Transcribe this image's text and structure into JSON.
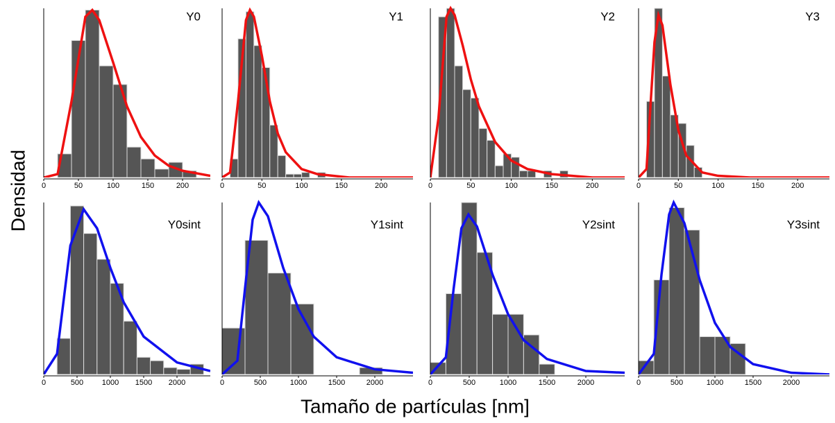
{
  "xlabel": "Tamaño de partículas [nm]",
  "ylabel": "Densidad",
  "chart_data": [
    {
      "type": "histogram",
      "title": "Y0",
      "bar_color": "#555555",
      "fit_color": "#ee1111",
      "bins": [
        20,
        40,
        60,
        80,
        100,
        120,
        140,
        160,
        180,
        200,
        220
      ],
      "values": [
        0.14,
        0.81,
        0.99,
        0.66,
        0.55,
        0.18,
        0.11,
        0.05,
        0.09,
        0.04
      ],
      "fit_x": [
        0,
        20,
        40,
        60,
        70,
        80,
        100,
        120,
        140,
        160,
        180,
        200,
        240
      ],
      "fit_values": [
        0,
        0.02,
        0.45,
        0.95,
        0.99,
        0.93,
        0.68,
        0.42,
        0.24,
        0.13,
        0.07,
        0.04,
        0.01
      ],
      "xlim": [
        0,
        240
      ],
      "ylim": [
        0,
        1
      ],
      "xticks": [
        0,
        50,
        100,
        150,
        200
      ]
    },
    {
      "type": "histogram",
      "title": "Y1",
      "bar_color": "#555555",
      "fit_color": "#ee1111",
      "bins": [
        10,
        20,
        30,
        40,
        50,
        60,
        70,
        80,
        90,
        100,
        110,
        120,
        130
      ],
      "values": [
        0.11,
        0.82,
        0.98,
        0.78,
        0.65,
        0.31,
        0.13,
        0.02,
        0.02,
        0.03,
        0,
        0.03
      ],
      "fit_x": [
        0,
        10,
        20,
        30,
        35,
        40,
        50,
        60,
        70,
        80,
        100,
        120,
        160,
        240
      ],
      "fit_values": [
        0,
        0.03,
        0.45,
        0.93,
        0.99,
        0.95,
        0.72,
        0.45,
        0.26,
        0.15,
        0.05,
        0.02,
        0,
        0
      ],
      "xlim": [
        0,
        240
      ],
      "ylim": [
        0,
        1
      ],
      "xticks": [
        0,
        50,
        100,
        150,
        200
      ]
    },
    {
      "type": "histogram",
      "title": "Y2",
      "bar_color": "#555555",
      "fit_color": "#ee1111",
      "bins": [
        10,
        20,
        30,
        40,
        50,
        60,
        70,
        80,
        90,
        100,
        110,
        120,
        130,
        140,
        150,
        160,
        170
      ],
      "values": [
        0.95,
        1.0,
        0.66,
        0.52,
        0.47,
        0.29,
        0.22,
        0.07,
        0.14,
        0.12,
        0.04,
        0.04,
        0,
        0.04,
        0,
        0.04
      ],
      "fit_x": [
        0,
        10,
        20,
        25,
        30,
        40,
        50,
        60,
        80,
        100,
        120,
        150,
        200,
        240
      ],
      "fit_values": [
        0,
        0.35,
        0.95,
        1.0,
        0.96,
        0.78,
        0.58,
        0.42,
        0.21,
        0.1,
        0.05,
        0.02,
        0,
        0
      ],
      "xlim": [
        0,
        240
      ],
      "ylim": [
        0,
        1
      ],
      "xticks": [
        0,
        50,
        100,
        150,
        200
      ]
    },
    {
      "type": "histogram",
      "title": "Y3",
      "bar_color": "#555555",
      "fit_color": "#ee1111",
      "bins": [
        10,
        20,
        30,
        40,
        50,
        60,
        70,
        80
      ],
      "values": [
        0.45,
        1.0,
        0.6,
        0.37,
        0.32,
        0.19,
        0.06
      ],
      "fit_x": [
        0,
        10,
        20,
        25,
        30,
        40,
        50,
        60,
        80,
        100,
        140,
        240
      ],
      "fit_values": [
        0,
        0.05,
        0.8,
        0.96,
        0.9,
        0.55,
        0.28,
        0.13,
        0.03,
        0.01,
        0,
        0
      ],
      "xlim": [
        0,
        240
      ],
      "ylim": [
        0,
        1
      ],
      "xticks": [
        0,
        50,
        100,
        150,
        200
      ]
    },
    {
      "type": "histogram",
      "title": "Y0sint",
      "bar_color": "#555555",
      "fit_color": "#1111ee",
      "bins": [
        200,
        400,
        600,
        800,
        1000,
        1200,
        1400,
        1600,
        1800,
        2000,
        2200,
        2400
      ],
      "values": [
        0.21,
        0.98,
        0.82,
        0.67,
        0.53,
        0.31,
        0.1,
        0.08,
        0.04,
        0.03,
        0.06
      ],
      "fit_x": [
        0,
        200,
        400,
        600,
        800,
        1000,
        1200,
        1500,
        2000,
        2500
      ],
      "fit_values": [
        0,
        0.12,
        0.75,
        0.96,
        0.85,
        0.62,
        0.42,
        0.22,
        0.07,
        0.02
      ],
      "xlim": [
        0,
        2500
      ],
      "ylim": [
        0,
        1
      ],
      "xticks": [
        0,
        500,
        1000,
        1500,
        2000
      ]
    },
    {
      "type": "histogram",
      "title": "Y1sint",
      "bar_color": "#555555",
      "fit_color": "#1111ee",
      "bins": [
        0,
        300,
        600,
        900,
        1200,
        1500,
        1800,
        2100
      ],
      "values": [
        0.27,
        0.78,
        0.59,
        0.41,
        0,
        0,
        0.04
      ],
      "fit_x": [
        0,
        200,
        300,
        400,
        480,
        600,
        800,
        1000,
        1200,
        1500,
        2000,
        2500
      ],
      "fit_values": [
        0,
        0.08,
        0.5,
        0.9,
        1.0,
        0.92,
        0.62,
        0.38,
        0.22,
        0.1,
        0.03,
        0.01
      ],
      "xlim": [
        0,
        2500
      ],
      "ylim": [
        0,
        1
      ],
      "xticks": [
        0,
        500,
        1000,
        1500,
        2000
      ]
    },
    {
      "type": "histogram",
      "title": "Y2sint",
      "bar_color": "#555555",
      "fit_color": "#1111ee",
      "bins": [
        0,
        200,
        400,
        600,
        800,
        1000,
        1200,
        1400,
        1600
      ],
      "values": [
        0.07,
        0.47,
        1.0,
        0.71,
        0.35,
        0.35,
        0.23,
        0.06
      ],
      "fit_x": [
        0,
        200,
        300,
        400,
        490,
        600,
        800,
        1000,
        1200,
        1500,
        2000,
        2500
      ],
      "fit_values": [
        0,
        0.1,
        0.5,
        0.85,
        0.93,
        0.86,
        0.58,
        0.35,
        0.2,
        0.09,
        0.02,
        0.01
      ],
      "xlim": [
        0,
        2500
      ],
      "ylim": [
        0,
        1
      ],
      "xticks": [
        0,
        500,
        1000,
        1500,
        2000
      ]
    },
    {
      "type": "histogram",
      "title": "Y3sint",
      "bar_color": "#555555",
      "fit_color": "#1111ee",
      "bins": [
        0,
        200,
        400,
        600,
        800,
        1000,
        1200,
        1400
      ],
      "values": [
        0.08,
        0.55,
        0.97,
        0.84,
        0.22,
        0.22,
        0.18
      ],
      "fit_x": [
        0,
        200,
        300,
        400,
        460,
        600,
        800,
        1000,
        1200,
        1500,
        2000,
        2500
      ],
      "fit_values": [
        0,
        0.12,
        0.58,
        0.93,
        1.0,
        0.88,
        0.55,
        0.3,
        0.16,
        0.06,
        0.01,
        0
      ],
      "xlim": [
        0,
        2500
      ],
      "ylim": [
        0,
        1
      ],
      "xticks": [
        0,
        500,
        1000,
        1500,
        2000
      ]
    }
  ]
}
